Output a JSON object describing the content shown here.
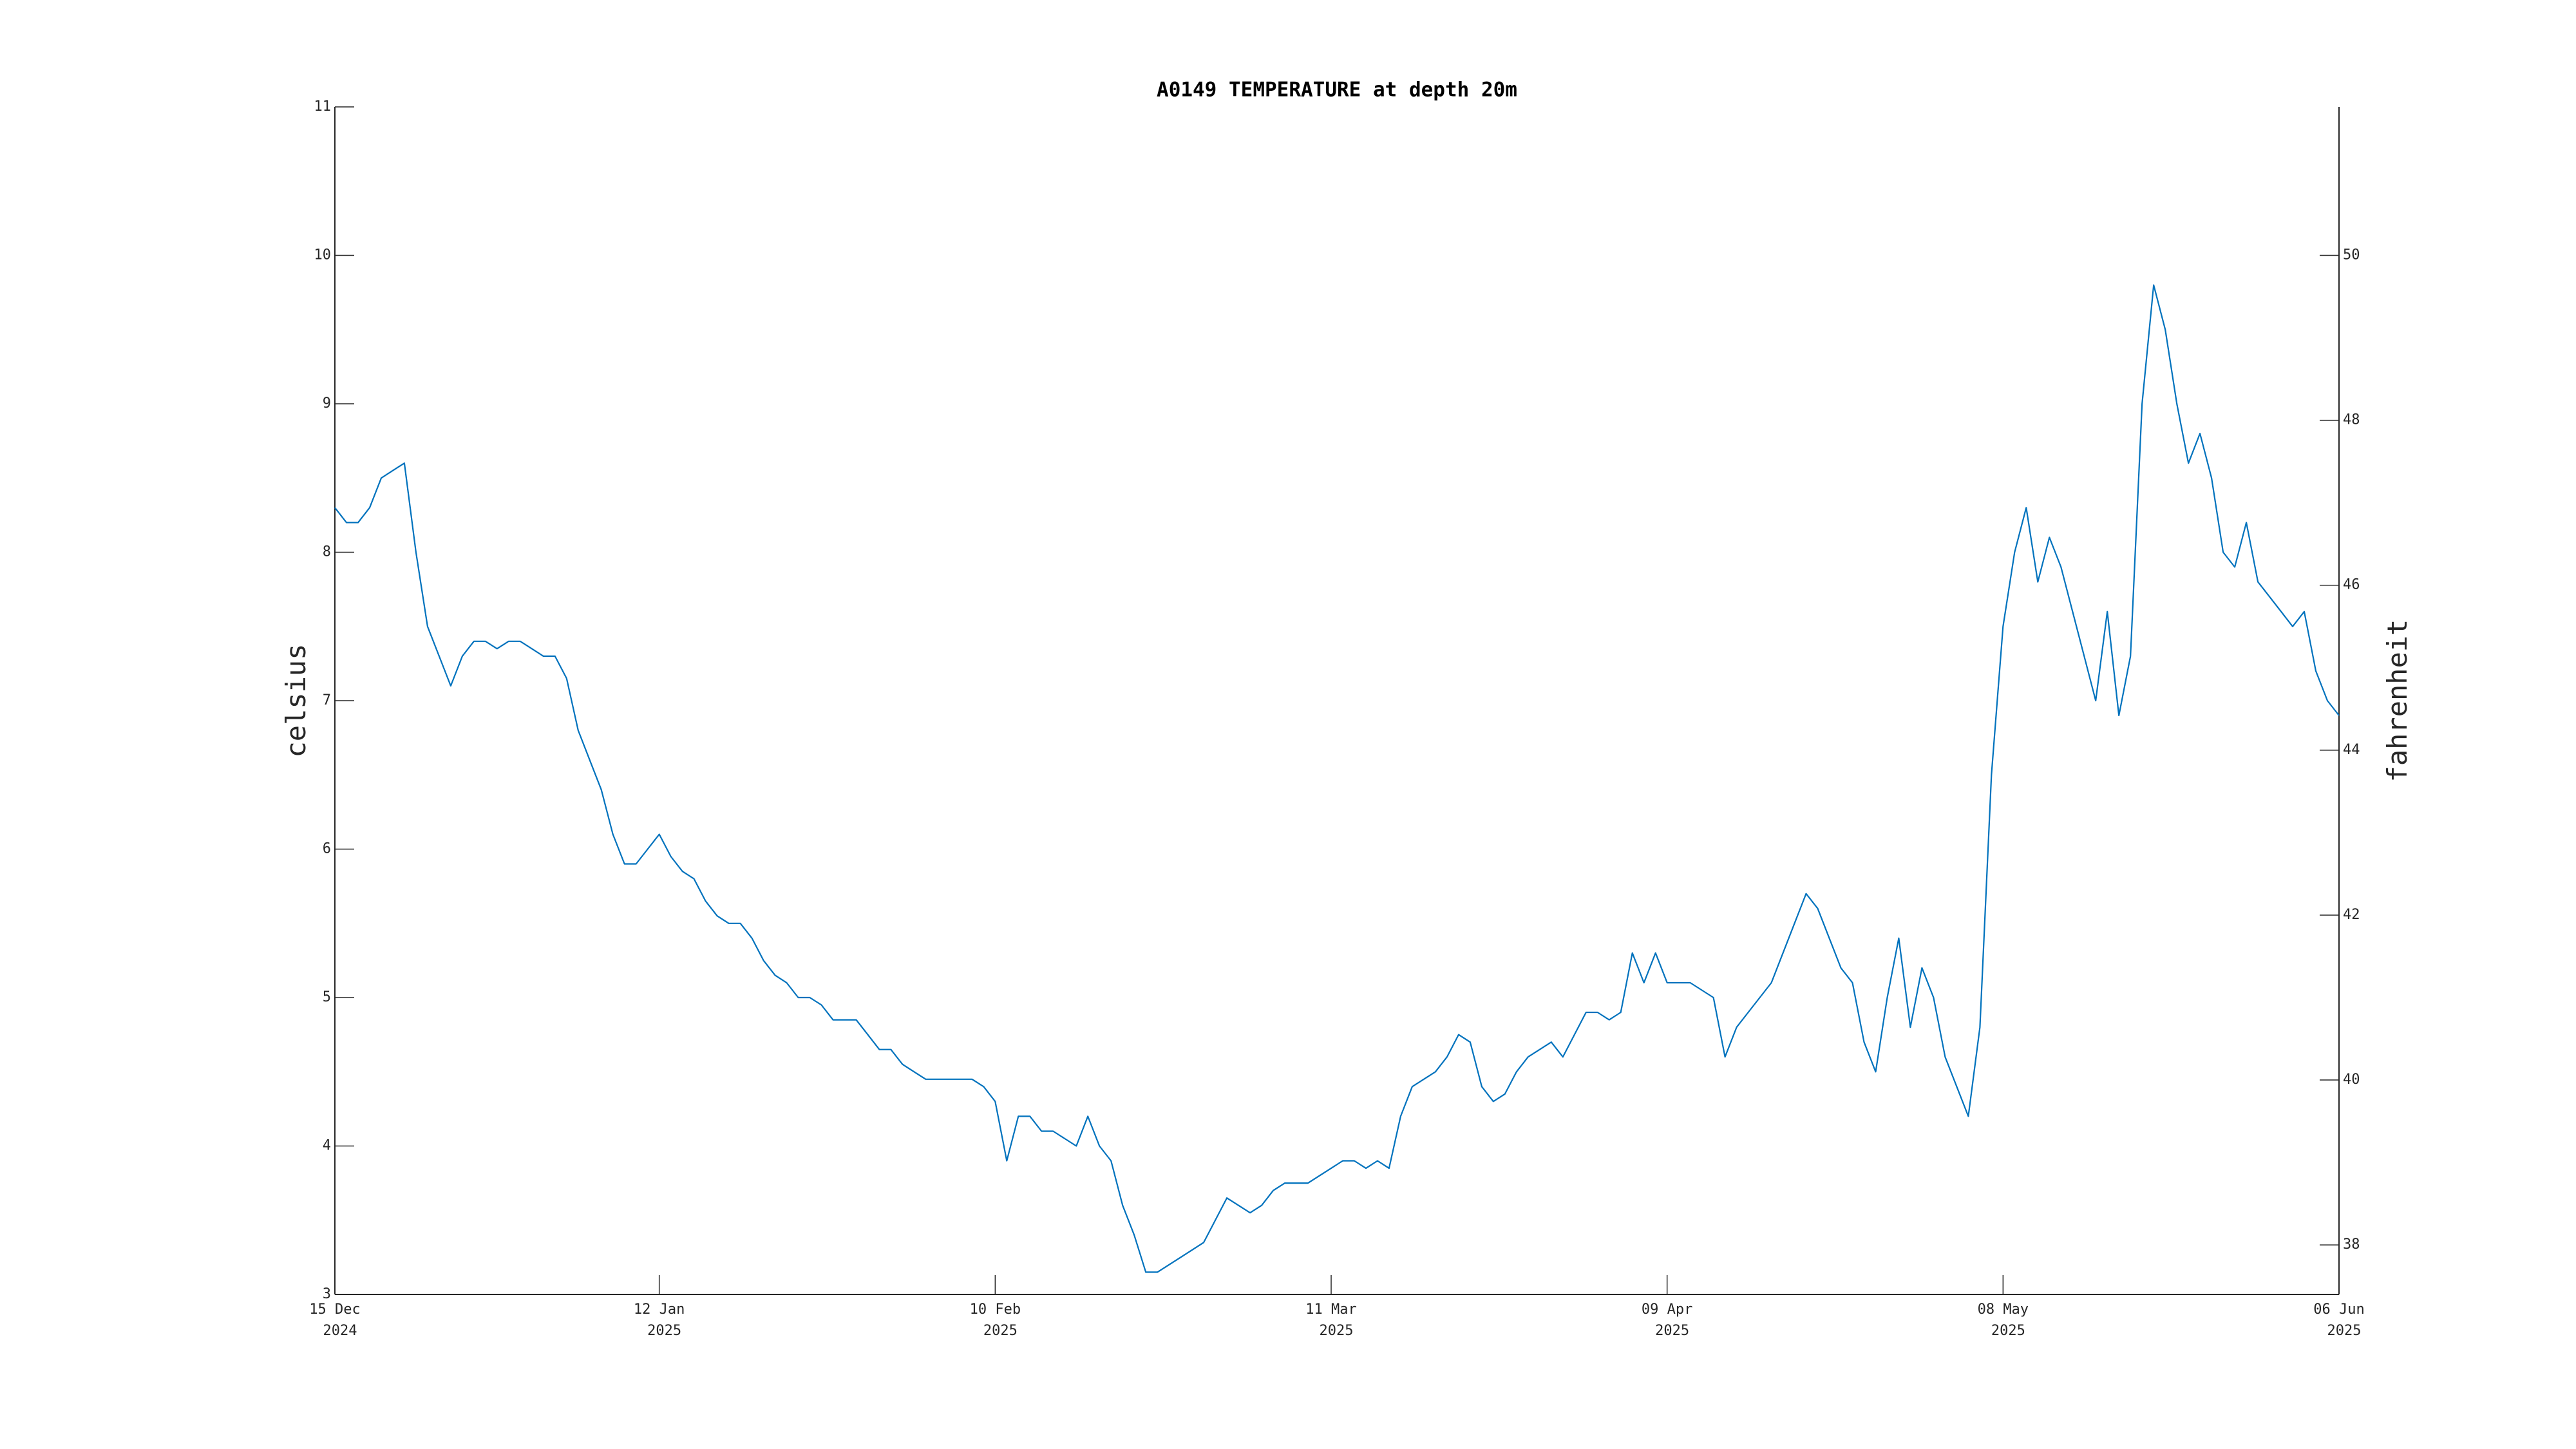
{
  "chart_data": {
    "type": "line",
    "title": "A0149 TEMPERATURE at depth 20m",
    "ylabel": "celsius",
    "y2label": "fahrenheit",
    "xlim": [
      "2024-12-15",
      "2025-06-06"
    ],
    "ylim": [
      3,
      11
    ],
    "y2lim": [
      37.4,
      51.8
    ],
    "yticks": [
      3,
      4,
      5,
      6,
      7,
      8,
      9,
      10,
      11
    ],
    "y2ticks": [
      38,
      40,
      42,
      44,
      46,
      48,
      50
    ],
    "xticks": [
      {
        "value": "2024-12-15",
        "label": [
          "15 Dec",
          "2024"
        ]
      },
      {
        "value": "2025-01-12",
        "label": [
          "12 Jan",
          "2025"
        ]
      },
      {
        "value": "2025-02-10",
        "label": [
          "10 Feb",
          "2025"
        ]
      },
      {
        "value": "2025-03-11",
        "label": [
          "11 Mar",
          "2025"
        ]
      },
      {
        "value": "2025-04-09",
        "label": [
          "09 Apr",
          "2025"
        ]
      },
      {
        "value": "2025-05-08",
        "label": [
          "08 May",
          "2025"
        ]
      },
      {
        "value": "2025-06-06",
        "label": [
          "06 Jun",
          "2025"
        ]
      }
    ],
    "color": "#0072bd",
    "x": [
      "2024-12-15",
      "2024-12-16",
      "2024-12-17",
      "2024-12-18",
      "2024-12-19",
      "2024-12-20",
      "2024-12-21",
      "2024-12-22",
      "2024-12-23",
      "2024-12-24",
      "2024-12-25",
      "2024-12-26",
      "2024-12-27",
      "2024-12-28",
      "2024-12-29",
      "2024-12-30",
      "2024-12-31",
      "2025-01-01",
      "2025-01-02",
      "2025-01-03",
      "2025-01-04",
      "2025-01-05",
      "2025-01-06",
      "2025-01-07",
      "2025-01-08",
      "2025-01-09",
      "2025-01-10",
      "2025-01-11",
      "2025-01-12",
      "2025-01-13",
      "2025-01-14",
      "2025-01-15",
      "2025-01-16",
      "2025-01-17",
      "2025-01-18",
      "2025-01-19",
      "2025-01-20",
      "2025-01-21",
      "2025-01-22",
      "2025-01-23",
      "2025-01-24",
      "2025-01-25",
      "2025-01-26",
      "2025-01-27",
      "2025-01-28",
      "2025-01-29",
      "2025-01-30",
      "2025-01-31",
      "2025-02-01",
      "2025-02-02",
      "2025-02-03",
      "2025-02-04",
      "2025-02-05",
      "2025-02-06",
      "2025-02-07",
      "2025-02-08",
      "2025-02-09",
      "2025-02-10",
      "2025-02-11",
      "2025-02-12",
      "2025-02-13",
      "2025-02-14",
      "2025-02-15",
      "2025-02-16",
      "2025-02-17",
      "2025-02-18",
      "2025-02-19",
      "2025-02-20",
      "2025-02-21",
      "2025-02-22",
      "2025-02-23",
      "2025-02-24",
      "2025-02-25",
      "2025-02-26",
      "2025-02-27",
      "2025-02-28",
      "2025-03-01",
      "2025-03-02",
      "2025-03-03",
      "2025-03-04",
      "2025-03-05",
      "2025-03-06",
      "2025-03-07",
      "2025-03-08",
      "2025-03-09",
      "2025-03-10",
      "2025-03-11",
      "2025-03-12",
      "2025-03-13",
      "2025-03-14",
      "2025-03-15",
      "2025-03-16",
      "2025-03-17",
      "2025-03-18",
      "2025-03-19",
      "2025-03-20",
      "2025-03-21",
      "2025-03-22",
      "2025-03-23",
      "2025-03-24",
      "2025-03-25",
      "2025-03-26",
      "2025-03-27",
      "2025-03-28",
      "2025-03-29",
      "2025-03-30",
      "2025-03-31",
      "2025-04-01",
      "2025-04-02",
      "2025-04-03",
      "2025-04-04",
      "2025-04-05",
      "2025-04-06",
      "2025-04-07",
      "2025-04-08",
      "2025-04-09",
      "2025-04-10",
      "2025-04-11",
      "2025-04-12",
      "2025-04-13",
      "2025-04-14",
      "2025-04-15",
      "2025-04-16",
      "2025-04-17",
      "2025-04-18",
      "2025-04-19",
      "2025-04-20",
      "2025-04-21",
      "2025-04-22",
      "2025-04-23",
      "2025-04-24",
      "2025-04-25",
      "2025-04-26",
      "2025-04-27",
      "2025-04-28",
      "2025-04-29",
      "2025-04-30",
      "2025-05-01",
      "2025-05-02",
      "2025-05-03",
      "2025-05-04",
      "2025-05-05",
      "2025-05-06",
      "2025-05-07",
      "2025-05-08",
      "2025-05-09",
      "2025-05-10",
      "2025-05-11",
      "2025-05-12",
      "2025-05-13",
      "2025-05-14",
      "2025-05-15",
      "2025-05-16",
      "2025-05-17",
      "2025-05-18",
      "2025-05-19",
      "2025-05-20",
      "2025-05-21",
      "2025-05-22",
      "2025-05-23",
      "2025-05-24",
      "2025-05-25",
      "2025-05-26",
      "2025-05-27",
      "2025-05-28",
      "2025-05-29",
      "2025-05-30",
      "2025-05-31",
      "2025-06-01",
      "2025-06-02",
      "2025-06-03",
      "2025-06-04",
      "2025-06-05",
      "2025-06-06"
    ],
    "values": [
      8.3,
      8.2,
      8.2,
      8.3,
      8.5,
      8.55,
      8.6,
      8.0,
      7.5,
      7.3,
      7.1,
      7.3,
      7.4,
      7.4,
      7.35,
      7.4,
      7.4,
      7.35,
      7.3,
      7.3,
      7.15,
      6.8,
      6.6,
      6.4,
      6.1,
      5.9,
      5.9,
      6.0,
      6.1,
      5.95,
      5.85,
      5.8,
      5.65,
      5.55,
      5.5,
      5.5,
      5.4,
      5.25,
      5.15,
      5.1,
      5.0,
      5.0,
      4.95,
      4.85,
      4.85,
      4.85,
      4.75,
      4.65,
      4.65,
      4.55,
      4.5,
      4.45,
      4.45,
      4.45,
      4.45,
      4.45,
      4.4,
      4.3,
      3.9,
      4.2,
      4.2,
      4.1,
      4.1,
      4.05,
      4.0,
      4.2,
      4.0,
      3.9,
      3.6,
      3.4,
      3.15,
      3.15,
      3.2,
      3.25,
      3.3,
      3.35,
      3.5,
      3.65,
      3.6,
      3.55,
      3.6,
      3.7,
      3.75,
      3.75,
      3.75,
      3.8,
      3.85,
      3.9,
      3.9,
      3.85,
      3.9,
      3.85,
      4.2,
      4.4,
      4.45,
      4.5,
      4.6,
      4.75,
      4.7,
      4.4,
      4.3,
      4.35,
      4.5,
      4.6,
      4.65,
      4.7,
      4.6,
      4.75,
      4.9,
      4.9,
      4.85,
      4.9,
      5.3,
      5.1,
      5.3,
      5.1,
      5.1,
      5.1,
      5.05,
      5.0,
      4.6,
      4.8,
      4.9,
      5.0,
      5.1,
      5.3,
      5.5,
      5.7,
      5.6,
      5.4,
      5.2,
      5.1,
      4.7,
      4.5,
      5.0,
      5.4,
      4.8,
      5.2,
      5.0,
      4.6,
      4.4,
      4.2,
      4.8,
      6.5,
      7.5,
      8.0,
      8.3,
      7.8,
      8.1,
      7.9,
      7.6,
      7.3,
      7.0,
      7.6,
      6.9,
      7.3,
      9.0,
      9.8,
      9.5,
      9.0,
      8.6,
      8.8,
      8.5,
      8.0,
      7.9,
      8.2,
      7.8,
      7.7,
      7.6,
      7.5,
      7.6,
      7.2,
      7.0,
      6.9
    ]
  }
}
